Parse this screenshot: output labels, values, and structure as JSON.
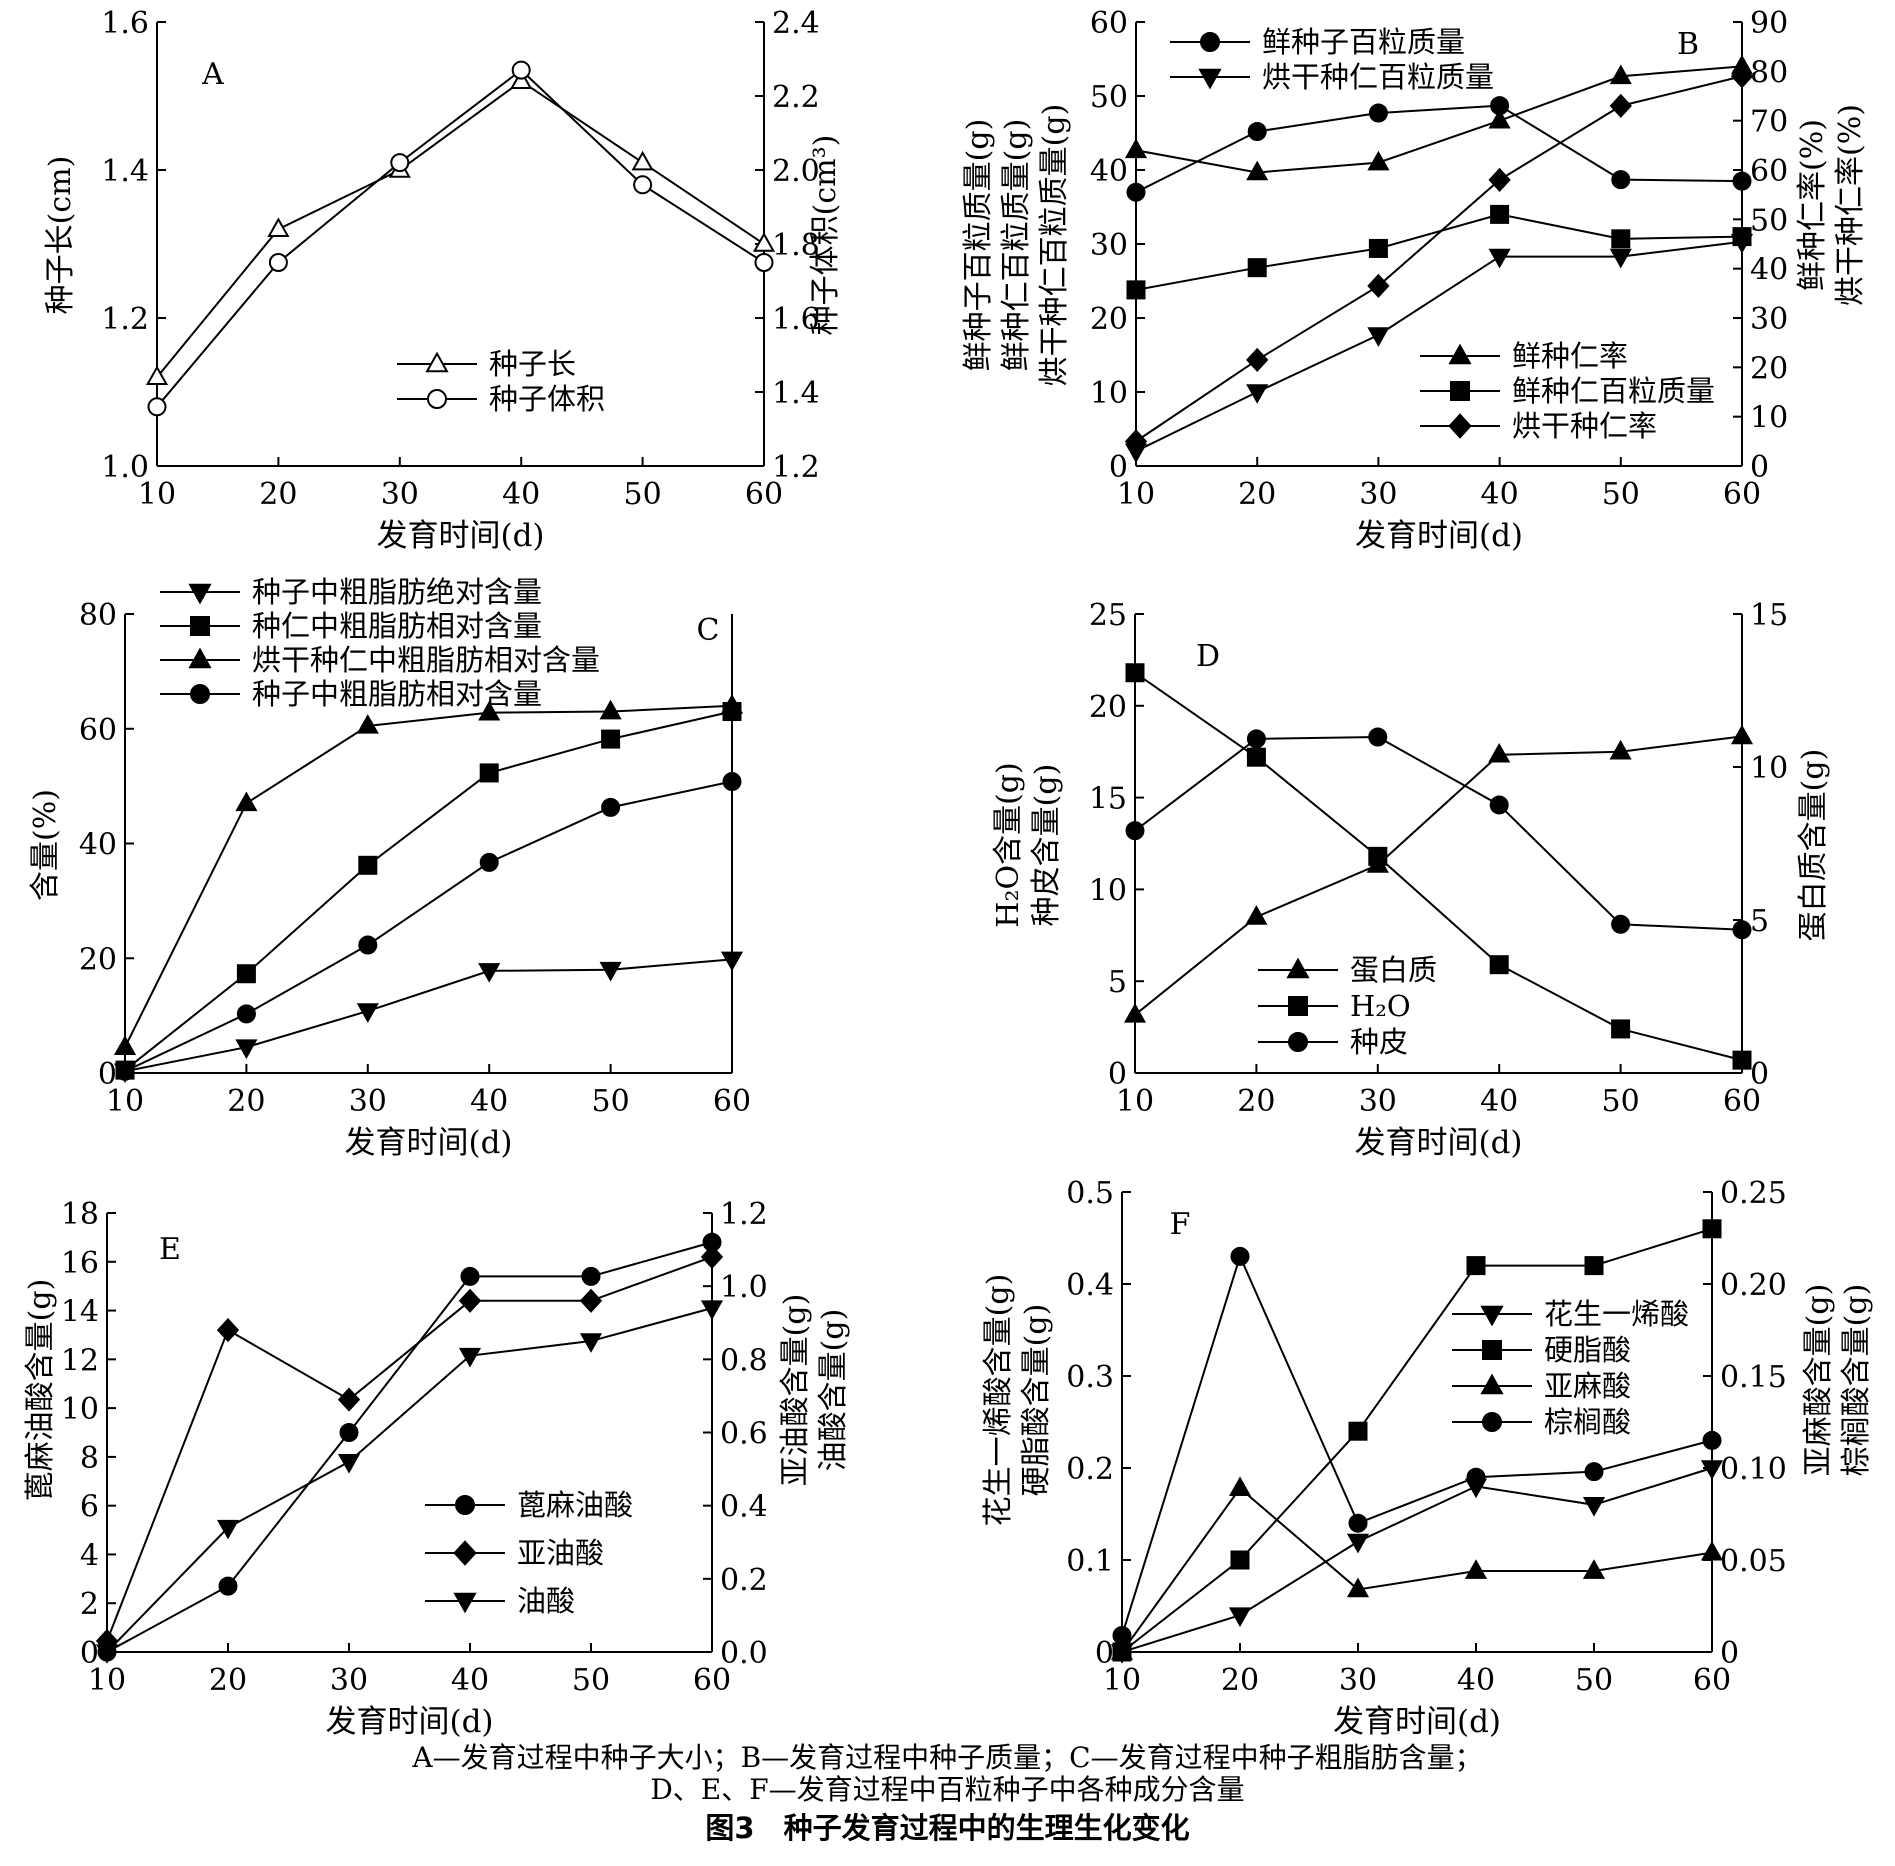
{
  "caption": {
    "line1": "A—发育过程中种子大小；B—发育过程中种子质量；C—发育过程中种子粗脂肪含量；",
    "line2": "D、E、F—发育过程中百粒种子中各种成分含量",
    "title": "图3　种子发育过程中的生理生化变化"
  },
  "chart_data": [
    {
      "panel": "A",
      "type": "line",
      "xlabel": "发育时间(d)",
      "x": [
        10,
        20,
        30,
        40,
        50,
        60
      ],
      "xticks": [
        "10",
        "20",
        "30",
        "40",
        "50",
        "60"
      ],
      "xlim": [
        10,
        60
      ],
      "y_left": {
        "label": "种子长(cm)",
        "lim": [
          1.0,
          1.6
        ],
        "ticks": [
          "1.0",
          "1.2",
          "1.4",
          "1.6"
        ]
      },
      "y_right": {
        "label": "种子体积(cm³)",
        "lim": [
          1.2,
          2.4
        ],
        "ticks": [
          "1.2",
          "1.4",
          "1.6",
          "1.8",
          "2.0",
          "2.2",
          "2.4"
        ]
      },
      "legend_position": "center-bottom",
      "series": [
        {
          "name": "种子长",
          "axis": "left",
          "marker": "triangle-open",
          "values": [
            1.12,
            1.32,
            1.4,
            1.52,
            1.41,
            1.3
          ]
        },
        {
          "name": "种子体积",
          "axis": "right",
          "marker": "circle-open",
          "values": [
            1.36,
            1.75,
            2.02,
            2.27,
            1.96,
            1.75
          ]
        }
      ]
    },
    {
      "panel": "B",
      "type": "line",
      "xlabel": "发育时间(d)",
      "x": [
        10,
        20,
        30,
        40,
        50,
        60
      ],
      "xticks": [
        "10",
        "20",
        "30",
        "40",
        "50",
        "60"
      ],
      "xlim": [
        10,
        60
      ],
      "y_left": {
        "label_lines": [
          "鲜种子百粒质量(g)",
          "鲜种仁百粒质量(g)",
          "烘干种仁百粒质量(g)"
        ],
        "lim": [
          0,
          60
        ],
        "ticks": [
          "0",
          "10",
          "20",
          "30",
          "40",
          "50",
          "60"
        ]
      },
      "y_right": {
        "label_lines": [
          "鲜种仁率(%)",
          "烘干种仁率(%)"
        ],
        "lim": [
          0,
          90
        ],
        "ticks": [
          "0",
          "10",
          "20",
          "30",
          "40",
          "50",
          "60",
          "70",
          "80",
          "90"
        ]
      },
      "legend_position": "top-left and bottom-right",
      "series": [
        {
          "name": "鲜种子百粒质量",
          "axis": "left",
          "marker": "circle",
          "values": [
            37.0,
            45.2,
            47.7,
            48.7,
            38.7,
            38.5
          ]
        },
        {
          "name": "烘干种仁百粒质量",
          "axis": "left",
          "marker": "triangle-down",
          "values": [
            2.0,
            10.0,
            17.7,
            28.3,
            28.3,
            30.3
          ]
        },
        {
          "name": "鲜种仁率",
          "axis": "right",
          "marker": "triangle",
          "values": [
            64,
            59.5,
            61.5,
            70,
            79,
            81
          ]
        },
        {
          "name": "鲜种仁百粒质量",
          "axis": "left",
          "marker": "square",
          "values": [
            23.8,
            26.8,
            29.4,
            34.0,
            30.7,
            31.0
          ]
        },
        {
          "name": "烘干种仁率",
          "axis": "right",
          "marker": "diamond",
          "values": [
            5,
            21.5,
            36.5,
            58,
            73,
            79
          ]
        }
      ]
    },
    {
      "panel": "C",
      "type": "line",
      "xlabel": "发育时间(d)",
      "x": [
        10,
        20,
        30,
        40,
        50,
        60
      ],
      "xticks": [
        "10",
        "20",
        "30",
        "40",
        "50",
        "60"
      ],
      "xlim": [
        10,
        60
      ],
      "y_left": {
        "label": "含量(%)",
        "lim": [
          0,
          80
        ],
        "ticks": [
          "0",
          "20",
          "40",
          "60",
          "80"
        ]
      },
      "legend_position": "top-left",
      "series": [
        {
          "name": "种子中粗脂肪绝对含量",
          "marker": "triangle-down",
          "values": [
            0.3,
            4.5,
            10.8,
            17.8,
            18.0,
            19.8
          ]
        },
        {
          "name": "种仁中粗脂肪相对含量",
          "marker": "square",
          "values": [
            0.5,
            17.3,
            36.2,
            52.3,
            58.2,
            63.0
          ]
        },
        {
          "name": "烘干种仁中粗脂肪相对含量",
          "marker": "triangle",
          "values": [
            4.5,
            47.0,
            60.5,
            62.8,
            63.0,
            64.0
          ]
        },
        {
          "name": "种子中粗脂肪相对含量",
          "marker": "circle",
          "values": [
            0.3,
            10.3,
            22.3,
            36.7,
            46.3,
            50.8
          ]
        }
      ]
    },
    {
      "panel": "D",
      "type": "line",
      "xlabel": "发育时间(d)",
      "x": [
        10,
        20,
        30,
        40,
        50,
        60
      ],
      "xticks": [
        "10",
        "20",
        "30",
        "40",
        "50",
        "60"
      ],
      "xlim": [
        10,
        60
      ],
      "y_left": {
        "label_lines": [
          "H₂O含量(g)",
          "种皮含量(g)"
        ],
        "lim": [
          0,
          25
        ],
        "ticks": [
          "0",
          "5",
          "10",
          "15",
          "20",
          "25"
        ]
      },
      "y_right": {
        "label": "蛋白质含量(g)",
        "lim": [
          0,
          15
        ],
        "ticks": [
          "0",
          "5",
          "10",
          "15"
        ]
      },
      "legend_position": "bottom-left",
      "series": [
        {
          "name": "蛋白质",
          "axis": "right",
          "marker": "triangle",
          "values": [
            1.9,
            5.1,
            6.8,
            10.4,
            10.5,
            11.0
          ]
        },
        {
          "name": "H₂O",
          "axis": "left",
          "marker": "square",
          "values": [
            21.8,
            17.2,
            11.8,
            5.9,
            2.4,
            0.7
          ]
        },
        {
          "name": "种皮",
          "axis": "left",
          "marker": "circle",
          "values": [
            13.2,
            18.2,
            18.3,
            14.6,
            8.1,
            7.8
          ]
        }
      ]
    },
    {
      "panel": "E",
      "type": "line",
      "xlabel": "发育时间(d)",
      "x": [
        10,
        20,
        30,
        40,
        50,
        60
      ],
      "xticks": [
        "10",
        "20",
        "30",
        "40",
        "50",
        "60"
      ],
      "xlim": [
        10,
        60
      ],
      "y_left": {
        "label": "蓖麻油酸含量(g)",
        "lim": [
          0,
          18
        ],
        "ticks": [
          "0",
          "2",
          "4",
          "6",
          "8",
          "10",
          "12",
          "14",
          "16",
          "18"
        ]
      },
      "y_right": {
        "label_lines": [
          "亚油酸含量(g)",
          "油酸含量(g)"
        ],
        "lim": [
          0,
          1.2
        ],
        "ticks": [
          "0.0",
          "0.2",
          "0.4",
          "0.6",
          "0.8",
          "1.0",
          "1.2"
        ]
      },
      "legend_position": "center-right",
      "series": [
        {
          "name": "蓖麻油酸",
          "axis": "left",
          "marker": "circle",
          "values": [
            0,
            2.7,
            9.0,
            15.4,
            15.4,
            16.8
          ]
        },
        {
          "name": "亚油酸",
          "axis": "right",
          "marker": "diamond",
          "values": [
            0.03,
            0.88,
            0.69,
            0.96,
            0.96,
            1.08
          ]
        },
        {
          "name": "油酸",
          "axis": "right",
          "marker": "triangle-down",
          "values": [
            0.0,
            0.34,
            0.52,
            0.81,
            0.85,
            0.94
          ]
        }
      ]
    },
    {
      "panel": "F",
      "type": "line",
      "xlabel": "发育时间(d)",
      "x": [
        10,
        20,
        30,
        40,
        50,
        60
      ],
      "xticks": [
        "10",
        "20",
        "30",
        "40",
        "50",
        "60"
      ],
      "xlim": [
        10,
        60
      ],
      "y_left": {
        "label_lines": [
          "花生一烯酸含量(g)",
          "硬脂酸含量(g)"
        ],
        "lim": [
          0,
          0.5
        ],
        "ticks": [
          "0",
          "0.1",
          "0.2",
          "0.3",
          "0.4",
          "0.5"
        ]
      },
      "y_right": {
        "label_lines": [
          "亚麻酸含量(g)",
          "棕榈酸含量(g)"
        ],
        "lim": [
          0,
          0.25
        ],
        "ticks": [
          "0",
          "0.05",
          "0.10",
          "0.15",
          "0.20",
          "0.25"
        ]
      },
      "legend_position": "top-right",
      "series": [
        {
          "name": "花生一烯酸",
          "axis": "left",
          "marker": "triangle-down",
          "values": [
            0.0,
            0.04,
            0.12,
            0.18,
            0.16,
            0.2
          ]
        },
        {
          "name": "硬脂酸",
          "axis": "left",
          "marker": "square",
          "values": [
            0.0,
            0.1,
            0.24,
            0.42,
            0.42,
            0.46
          ]
        },
        {
          "name": "亚麻酸",
          "axis": "right",
          "marker": "triangle",
          "values": [
            0.0,
            0.089,
            0.034,
            0.044,
            0.044,
            0.054
          ]
        },
        {
          "name": "棕榈酸",
          "axis": "right",
          "marker": "circle",
          "values": [
            0.009,
            0.215,
            0.07,
            0.095,
            0.098,
            0.115
          ]
        }
      ]
    }
  ]
}
